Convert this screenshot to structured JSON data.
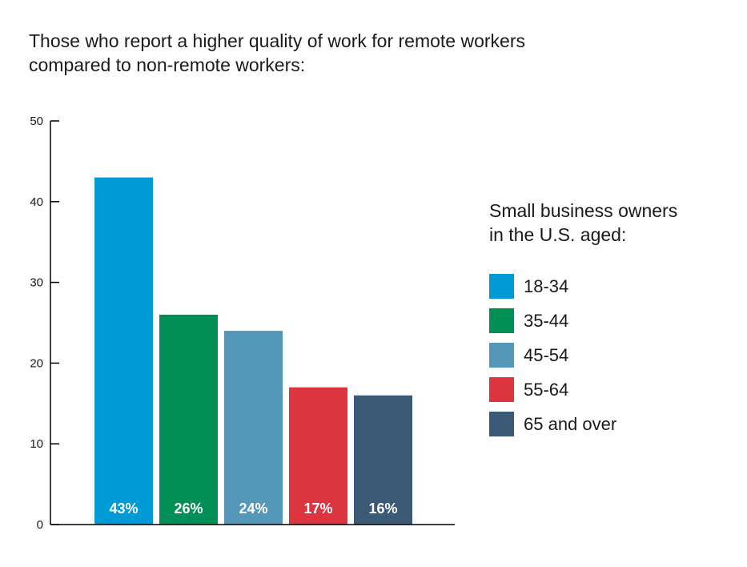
{
  "title": {
    "line1": "Those who report a higher quality of work for remote workers",
    "line2": "compared to non-remote workers:"
  },
  "legend": {
    "title_line1": "Small business owners",
    "title_line2": "in the U.S. aged:",
    "items": [
      {
        "label": "18-34",
        "color": "#009ad6"
      },
      {
        "label": "35-44",
        "color": "#008f54"
      },
      {
        "label": "45-54",
        "color": "#5597b8"
      },
      {
        "label": "55-64",
        "color": "#dd3540"
      },
      {
        "label": "65 and over",
        "color": "#3b5a77"
      }
    ]
  },
  "chart_data": {
    "type": "bar",
    "categories": [
      "18-34",
      "35-44",
      "45-54",
      "55-64",
      "65 and over"
    ],
    "values": [
      43,
      26,
      24,
      17,
      16
    ],
    "data_labels": [
      "43%",
      "26%",
      "24%",
      "17%",
      "16%"
    ],
    "colors": [
      "#009ad6",
      "#008f54",
      "#5597b8",
      "#dd3540",
      "#3b5a77"
    ],
    "ylim": [
      0,
      50
    ],
    "yticks": [
      0,
      10,
      20,
      30,
      40,
      50
    ],
    "title": "Those who report a higher quality of work for remote workers compared to non-remote workers:",
    "xlabel": "",
    "ylabel": "",
    "legend_position": "right"
  }
}
